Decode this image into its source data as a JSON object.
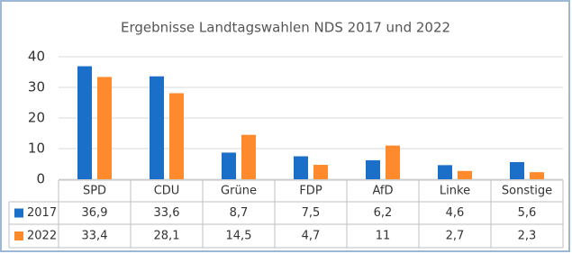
{
  "chart_data": {
    "type": "bar",
    "title": "Ergebnisse Landtagswahlen NDS 2017 und 2022",
    "categories": [
      "SPD",
      "CDU",
      "Grüne",
      "FDP",
      "AfD",
      "Linke",
      "Sonstige"
    ],
    "series": [
      {
        "name": "2017",
        "color": "#1b6fc8",
        "values": [
          36.9,
          33.6,
          8.7,
          7.5,
          6.2,
          4.6,
          5.6
        ],
        "value_labels": [
          "36,9",
          "33,6",
          "8,7",
          "7,5",
          "6,2",
          "4,6",
          "5,6"
        ]
      },
      {
        "name": "2022",
        "color": "#ff8a2b",
        "values": [
          33.4,
          28.1,
          14.5,
          4.7,
          11,
          2.7,
          2.3
        ],
        "value_labels": [
          "33,4",
          "28,1",
          "14,5",
          "4,7",
          "11",
          "2,7",
          "2,3"
        ]
      }
    ],
    "ylim": [
      0,
      40
    ],
    "yticks": [
      0,
      10,
      20,
      30,
      40
    ],
    "grid": true
  }
}
